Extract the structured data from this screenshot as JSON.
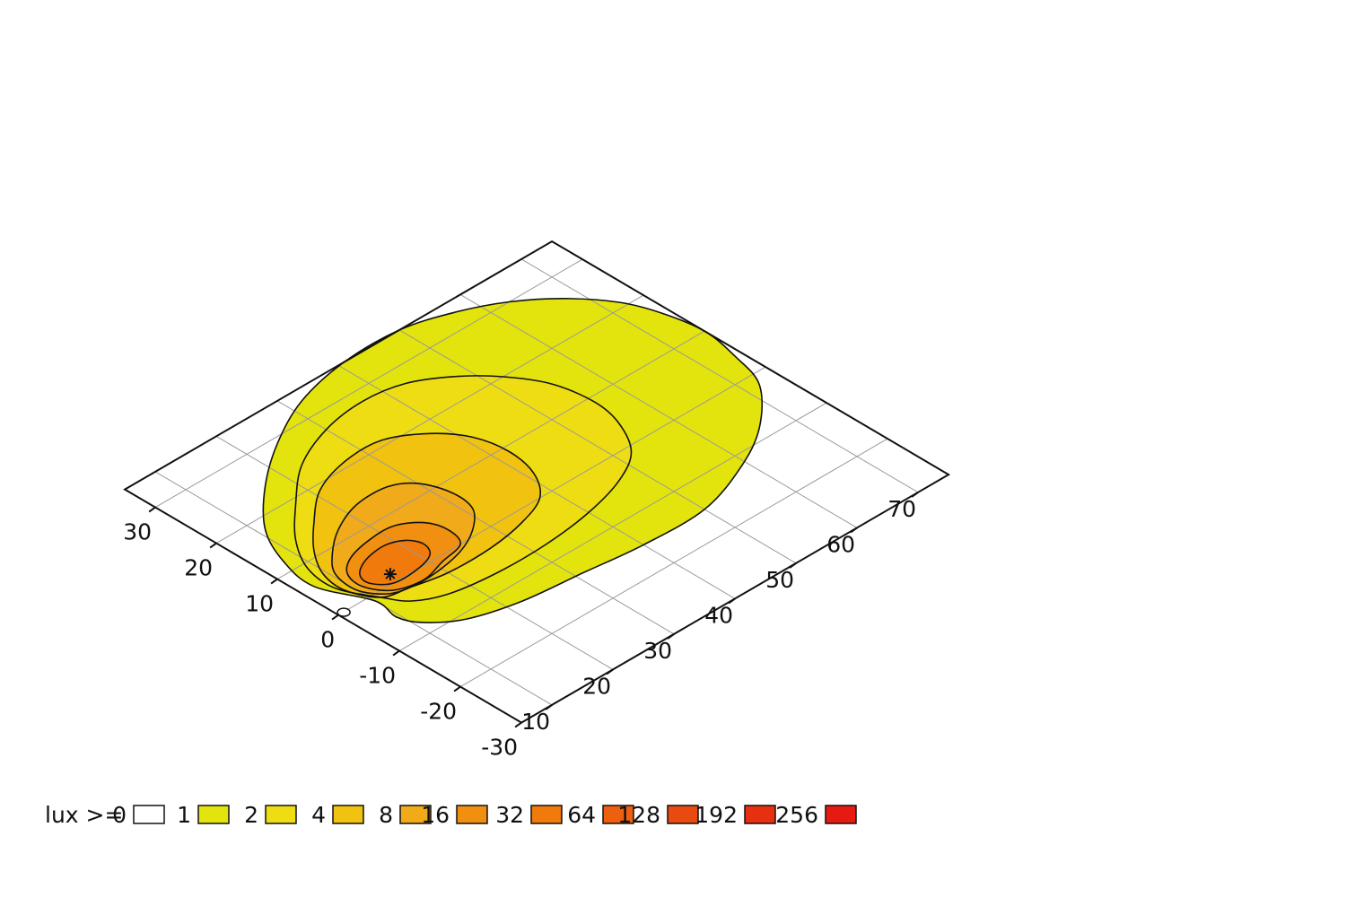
{
  "chart_data": {
    "type": "heatmap",
    "title": "",
    "xlabel": "",
    "ylabel": "",
    "x_axis": {
      "range": [
        -30,
        35
      ],
      "ticks": [
        -30,
        -20,
        -10,
        0,
        10,
        20,
        30
      ]
    },
    "y_axis": {
      "range": [
        5,
        75
      ],
      "ticks": [
        10,
        20,
        30,
        40,
        50,
        60,
        70
      ]
    },
    "grid": true,
    "legend": {
      "prefix": "lux >= ",
      "placement": "bottom-left",
      "levels": [
        {
          "label": "0",
          "color": "#ffffff"
        },
        {
          "label": "1",
          "color": "#e3e30d"
        },
        {
          "label": "2",
          "color": "#eedd12"
        },
        {
          "label": "4",
          "color": "#f1c20f"
        },
        {
          "label": "8",
          "color": "#f0aa1a"
        },
        {
          "label": "16",
          "color": "#f08f10"
        },
        {
          "label": "32",
          "color": "#f07a0c"
        },
        {
          "label": "64",
          "color": "#ee6010"
        },
        {
          "label": "128",
          "color": "#e84a10"
        },
        {
          "label": "192",
          "color": "#e63010"
        },
        {
          "label": "256",
          "color": "#e61a10"
        }
      ]
    },
    "luminaire_position": {
      "x": 0,
      "y": 5
    },
    "isolux_contours": [
      {
        "level": 1,
        "color": "#e3e30d",
        "points": [
          [
            -1,
            10
          ],
          [
            6,
            7
          ],
          [
            12,
            8
          ],
          [
            18,
            11
          ],
          [
            24,
            17
          ],
          [
            29,
            24
          ],
          [
            33,
            32
          ],
          [
            35,
            41
          ],
          [
            35,
            50
          ],
          [
            33,
            57
          ],
          [
            30,
            63
          ],
          [
            26,
            68
          ],
          [
            21,
            72
          ],
          [
            16,
            74
          ],
          [
            10,
            75
          ],
          [
            4,
            74
          ],
          [
            -2,
            72
          ],
          [
            -8,
            66
          ],
          [
            -12,
            59
          ],
          [
            -15,
            50
          ],
          [
            -15,
            40
          ],
          [
            -14,
            31
          ],
          [
            -13,
            22
          ],
          [
            -11,
            15
          ],
          [
            -8,
            11
          ],
          [
            -5,
            9.5
          ]
        ]
      },
      {
        "level": 2,
        "color": "#eedd12",
        "points": [
          [
            -1,
            11
          ],
          [
            4,
            8.5
          ],
          [
            9,
            9
          ],
          [
            14,
            12
          ],
          [
            19,
            17
          ],
          [
            24,
            23
          ],
          [
            27,
            30
          ],
          [
            28,
            37
          ],
          [
            27,
            43
          ],
          [
            24,
            48
          ],
          [
            20,
            52
          ],
          [
            15,
            55
          ],
          [
            9,
            56
          ],
          [
            4,
            55
          ],
          [
            -1,
            52
          ],
          [
            -4,
            47
          ],
          [
            -6,
            40
          ],
          [
            -7,
            32
          ],
          [
            -7,
            24
          ],
          [
            -6,
            17
          ],
          [
            -4,
            13
          ]
        ]
      },
      {
        "level": 4,
        "color": "#f1c20f",
        "points": [
          [
            -1,
            11
          ],
          [
            3,
            9
          ],
          [
            7,
            9.5
          ],
          [
            11,
            12
          ],
          [
            15,
            16
          ],
          [
            19,
            21
          ],
          [
            21,
            27
          ],
          [
            21,
            33
          ],
          [
            18,
            38
          ],
          [
            14,
            41
          ],
          [
            9,
            42
          ],
          [
            4,
            41
          ],
          [
            0,
            38
          ],
          [
            -2,
            33
          ],
          [
            -3,
            27
          ],
          [
            -3,
            20
          ],
          [
            -2,
            15
          ]
        ]
      },
      {
        "level": 8,
        "color": "#f0aa1a",
        "points": [
          [
            -1,
            12
          ],
          [
            2,
            10
          ],
          [
            6,
            10.5
          ],
          [
            9,
            13
          ],
          [
            12,
            17
          ],
          [
            14,
            22
          ],
          [
            14,
            27
          ],
          [
            12,
            30
          ],
          [
            8,
            31.5
          ],
          [
            4,
            31
          ],
          [
            1,
            28
          ],
          [
            -1,
            24
          ],
          [
            -2,
            19
          ],
          [
            -2,
            15
          ]
        ]
      },
      {
        "level": 16,
        "color": "#f08f10",
        "points": [
          [
            -1,
            13
          ],
          [
            2,
            11
          ],
          [
            5,
            11.5
          ],
          [
            7,
            14
          ],
          [
            8,
            18
          ],
          [
            8,
            22
          ],
          [
            6,
            25
          ],
          [
            3,
            26
          ],
          [
            0,
            25
          ],
          [
            -1,
            21
          ],
          [
            -2,
            17
          ]
        ]
      },
      {
        "level": 32,
        "color": "#f07a0c",
        "points": [
          [
            0,
            14
          ],
          [
            2,
            12
          ],
          [
            4,
            12.5
          ],
          [
            5.5,
            15
          ],
          [
            6,
            18.5
          ],
          [
            5,
            21
          ],
          [
            3,
            22
          ],
          [
            1,
            21
          ],
          [
            0,
            18
          ]
        ]
      }
    ]
  }
}
